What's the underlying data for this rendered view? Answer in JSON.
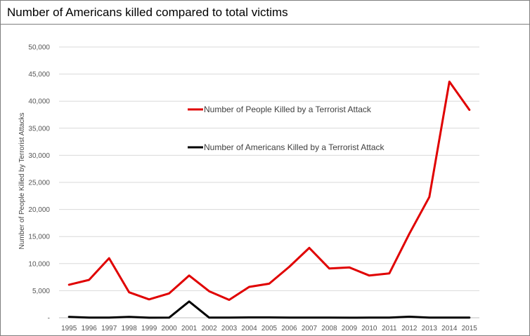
{
  "header": {
    "title": "Number of Americans killed compared to total victims"
  },
  "chart_data": {
    "type": "line",
    "title": "Number of Americans killed compared to total victims",
    "xlabel": "",
    "ylabel": "Number of People Killed by Terrorist Attacks",
    "x": [
      "1995",
      "1996",
      "1997",
      "1998",
      "1999",
      "2000",
      "2001",
      "2002",
      "2003",
      "2004",
      "2005",
      "2006",
      "2007",
      "2008",
      "2009",
      "2010",
      "2011",
      "2012",
      "2013",
      "2014",
      "2015"
    ],
    "y_ticks": [
      "-",
      "5,000",
      "10,000",
      "15,000",
      "20,000",
      "25,000",
      "30,000",
      "35,000",
      "40,000",
      "45,000",
      "50,000"
    ],
    "ylim": [
      0,
      50000
    ],
    "grid": true,
    "legend_position": "upper-center inside plot",
    "series": [
      {
        "name": "Number of People Killed by a Terrorist Attack",
        "color": "#e00000",
        "values": [
          6100,
          7000,
          11000,
          4700,
          3400,
          4500,
          7800,
          4900,
          3300,
          5700,
          6300,
          9400,
          12900,
          9100,
          9300,
          7800,
          8200,
          15500,
          22300,
          43600,
          38400
        ]
      },
      {
        "name": "Number of Americans Killed by a Terrorist Attack",
        "color": "#000000",
        "values": [
          170,
          25,
          20,
          160,
          10,
          20,
          3000,
          30,
          20,
          70,
          60,
          30,
          20,
          30,
          10,
          20,
          20,
          200,
          20,
          40,
          20
        ]
      }
    ]
  }
}
